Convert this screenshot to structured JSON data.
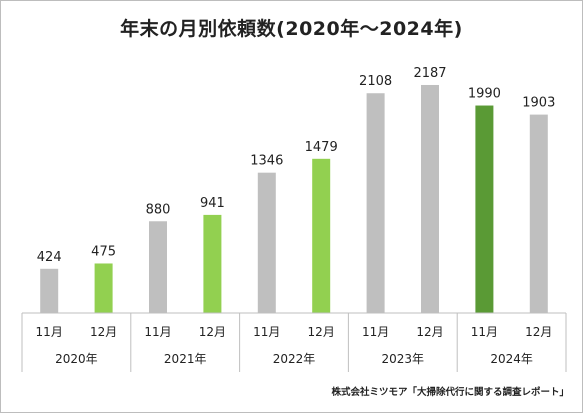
{
  "chart_data": {
    "type": "bar",
    "title": "年末の月別依頼数(2020年〜2024年)",
    "categories": [
      "11月",
      "12月",
      "11月",
      "12月",
      "11月",
      "12月",
      "11月",
      "12月",
      "11月",
      "12月"
    ],
    "groups": [
      "2020年",
      "2021年",
      "2022年",
      "2023年",
      "2024年"
    ],
    "values": [
      424,
      475,
      880,
      941,
      1346,
      1479,
      2108,
      2187,
      1990,
      1903
    ],
    "bar_colors": [
      "#bfbfbf",
      "#92d050",
      "#bfbfbf",
      "#92d050",
      "#bfbfbf",
      "#92d050",
      "#bfbfbf",
      "#bfbfbf",
      "#5a9a35",
      "#bfbfbf"
    ],
    "ylim": [
      0,
      2350
    ],
    "grid": false,
    "legend": "none"
  },
  "source": "株式会社ミツモア「大掃除代行に関する調査レポート」"
}
